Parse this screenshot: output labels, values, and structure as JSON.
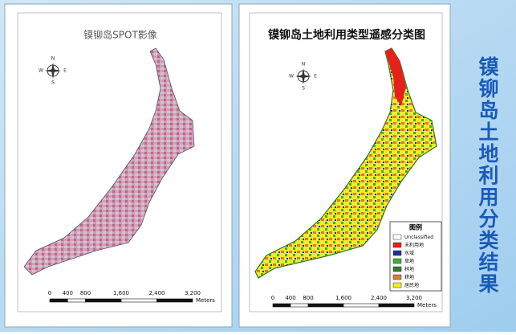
{
  "slide_title": "镆铆岛土地利用分类结果",
  "left_map": {
    "title": "镆铆岛SPOT影像",
    "compass": [
      "N",
      "E",
      "S",
      "W"
    ],
    "scale_labels": [
      "0",
      "400",
      "800",
      "1,600",
      "2,400",
      "3,200"
    ],
    "scale_unit": "Meters"
  },
  "right_map": {
    "title": "镆铆岛土地利用类型遥感分类图",
    "compass": [
      "N",
      "E",
      "S",
      "W"
    ],
    "scale_labels": [
      "0",
      "400",
      "800",
      "1,600",
      "2,400",
      "3,200"
    ],
    "scale_unit": "Meters",
    "legend": {
      "title": "图例",
      "items": [
        {
          "label": "Unclassified",
          "color": "#ffffff"
        },
        {
          "label": "未利用地",
          "color": "#e8201c"
        },
        {
          "label": "水域",
          "color": "#1a2f9c"
        },
        {
          "label": "草地",
          "color": "#3cb034"
        },
        {
          "label": "林地",
          "color": "#2f7a2a"
        },
        {
          "label": "耕地",
          "color": "#e07b27"
        },
        {
          "label": "居民地",
          "color": "#f2ea2a"
        }
      ]
    }
  }
}
